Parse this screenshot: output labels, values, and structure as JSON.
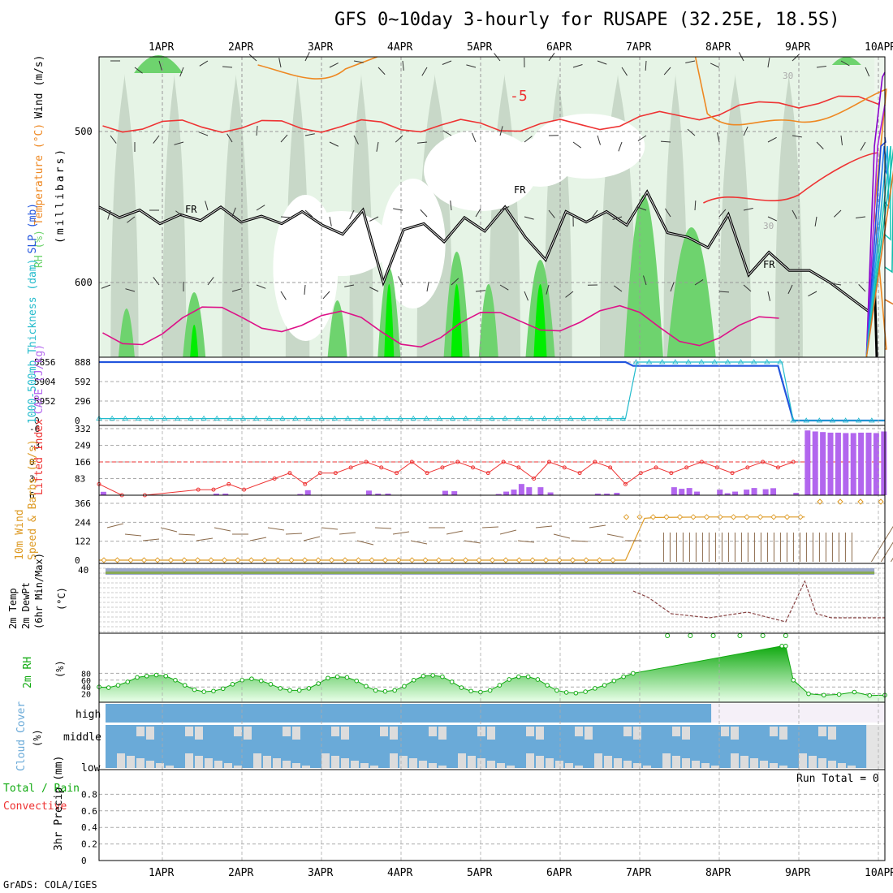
{
  "title": "GFS 0~10day 3-hourly for RUSAPE (32.25E, 18.5S)",
  "credit": "GrADS: COLA/IGES",
  "dates": [
    "1APR",
    "2APR",
    "3APR",
    "4APR",
    "5APR",
    "6APR",
    "7APR",
    "8APR",
    "9APR",
    "10APR"
  ],
  "colors": {
    "rh_light": "#e6f4e6",
    "rh_mid": "#c8d8c8",
    "rh_green": "#6ed36e",
    "rh_bright": "#00ee00",
    "temp_red": "#ee3333",
    "temp_orange": "#ee8822",
    "temp_magenta": "#dd1188",
    "slp": "#2255dd",
    "thk": "#22bbcc",
    "cape": "#b266ee",
    "li": "#ee3333",
    "wind_speed": "#dd9922",
    "barb": "#8b6a4a",
    "rh2m": "#11aa11",
    "cloud": "#6aaad8",
    "cloud_gap": "#dcdcdc"
  },
  "chart_data": [
    {
      "panel": "upper-air",
      "type": "heatmap",
      "ylabel_parts": [
        "RH (%)",
        "Temperature (°C)",
        "Wind (m/s)"
      ],
      "ylabel2": "(millibars)",
      "y_ticks": [
        "500",
        "600"
      ],
      "contour_labels": [
        "-5",
        "FR",
        "FR",
        "FR",
        "30",
        "30"
      ],
      "freezing_level_mb": [
        550,
        557,
        552,
        561,
        555,
        559,
        550,
        560,
        556,
        561,
        553,
        562,
        568,
        552,
        600,
        565,
        561,
        573,
        557,
        566,
        550,
        570,
        585,
        553,
        560,
        553,
        562,
        540,
        567,
        570,
        577,
        555,
        595,
        580,
        592,
        592,
        600,
        610,
        620
      ]
    },
    {
      "panel": "slp-thickness",
      "type": "line",
      "ylabel_parts": [
        "1000-500mb Thickness (dam)",
        "SLP (mb)"
      ],
      "left_ticks": [
        "5856",
        "5904",
        "5952",
        "0"
      ],
      "right_ticks": [
        "888",
        "592",
        "296",
        "0"
      ],
      "series": [
        {
          "name": "SLP",
          "x": [
            0,
            6.9,
            7,
            8.9,
            9.1,
            10.3
          ],
          "values": [
            888,
            888,
            830,
            830,
            0,
            0
          ]
        },
        {
          "name": "Thickness",
          "x": [
            0,
            6.9,
            7.05,
            8.95,
            9.1,
            10.3
          ],
          "values": [
            30,
            30,
            888,
            888,
            0,
            0
          ]
        }
      ]
    },
    {
      "panel": "cape-li",
      "type": "bar",
      "ylabel_parts": [
        "Lifted Index",
        "CAPE (J/kg)"
      ],
      "left_ticks": [
        "-6",
        "-3",
        "0",
        "3",
        "6"
      ],
      "right_ticks": [
        "332",
        "249",
        "166",
        "83",
        ""
      ],
      "cape_x": [
        0.02,
        1.5,
        1.62,
        2.6,
        2.7,
        3.5,
        3.62,
        3.75,
        4.5,
        4.62,
        5.2,
        5.3,
        5.4,
        5.5,
        5.6,
        5.75,
        5.88,
        6.5,
        6.62,
        6.75,
        7.5,
        7.6,
        7.7,
        7.8,
        8.1,
        8.2,
        8.3,
        8.45,
        8.55,
        8.7,
        8.8,
        9.1,
        9.25,
        9.35,
        9.45,
        9.55,
        9.65,
        9.75,
        9.85,
        9.95,
        10.05,
        10.15,
        10.25
      ],
      "cape_values": [
        17,
        8,
        8,
        6,
        25,
        23,
        8,
        8,
        22,
        20,
        6,
        18,
        28,
        56,
        40,
        40,
        14,
        8,
        8,
        12,
        40,
        32,
        36,
        18,
        28,
        10,
        18,
        28,
        36,
        30,
        35,
        12,
        323,
        318,
        315,
        312,
        312,
        310,
        310,
        312,
        312,
        310,
        318
      ],
      "li_x": [
        0,
        0.3,
        0.6,
        1.3,
        1.5,
        1.7,
        1.9,
        2.3,
        2.5,
        2.7,
        2.9,
        3.1,
        3.3,
        3.5,
        3.7,
        3.9,
        4.1,
        4.3,
        4.5,
        4.7,
        4.9,
        5.1,
        5.3,
        5.5,
        5.7,
        5.9,
        6.1,
        6.3,
        6.5,
        6.7,
        6.9,
        7.1,
        7.3,
        7.5,
        7.7,
        7.9,
        8.1,
        8.3,
        8.5,
        8.7,
        8.9,
        9.1
      ],
      "li_values": [
        4,
        6,
        6,
        5,
        5,
        4,
        5,
        3,
        2,
        4,
        2,
        2,
        1,
        0,
        1,
        2,
        0,
        2,
        1,
        0,
        1,
        2,
        0,
        1,
        3,
        0,
        1,
        2,
        0,
        1,
        4,
        2,
        1,
        2,
        1,
        0,
        1,
        2,
        1,
        0,
        1,
        0
      ]
    },
    {
      "panel": "wind10m",
      "type": "line",
      "ylabel_parts": [
        "10m Wind",
        "Speed & Barbs (m/s)"
      ],
      "right_ticks": [
        "366",
        "244",
        "122",
        "0"
      ],
      "series": [
        {
          "name": "Speed",
          "x": [
            0,
            6.9,
            7.15,
            7.3,
            8,
            8.9,
            9.25
          ],
          "values": [
            0,
            0,
            270,
            275,
            278,
            278,
            278
          ]
        }
      ]
    },
    {
      "panel": "temp2m",
      "type": "line",
      "ylabel_parts": [
        "2m Temp",
        "2m DewPt",
        "(6hr Min/Max)"
      ],
      "y_unit": "(°C)",
      "y_ticks": [
        "40"
      ],
      "series": [
        {
          "name": "Dew Point",
          "x": [
            7,
            7.2,
            7.5,
            8,
            8.5,
            9,
            9.25,
            9.4,
            9.6,
            10.3
          ],
          "values": [
            22,
            30,
            50,
            55,
            48,
            60,
            10,
            50,
            55,
            55
          ]
        }
      ]
    },
    {
      "panel": "rh2m",
      "type": "area",
      "ylabel_parts": [
        "2m RH"
      ],
      "y_unit": "(%)",
      "y_ticks": [
        "80",
        "60",
        "40",
        "20"
      ],
      "series": [
        {
          "name": "2m RH",
          "x": [
            0,
            0.125,
            0.25,
            0.375,
            0.5,
            0.625,
            0.75,
            0.875,
            1,
            1.125,
            1.25,
            1.375,
            1.5,
            1.625,
            1.75,
            1.875,
            2,
            2.125,
            2.25,
            2.375,
            2.5,
            2.625,
            2.75,
            2.875,
            3,
            3.125,
            3.25,
            3.375,
            3.5,
            3.625,
            3.75,
            3.875,
            4,
            4.125,
            4.25,
            4.375,
            4.5,
            4.625,
            4.75,
            4.875,
            5,
            5.125,
            5.25,
            5.375,
            5.5,
            5.625,
            5.75,
            5.875,
            6,
            6.125,
            6.25,
            6.375,
            6.5,
            6.625,
            6.75,
            6.875,
            7,
            8.95,
            9,
            9.1,
            9.3,
            9.5,
            9.7,
            9.9,
            10.1,
            10.3
          ],
          "values": [
            40,
            38,
            45,
            55,
            68,
            72,
            75,
            72,
            60,
            45,
            32,
            26,
            28,
            35,
            48,
            60,
            64,
            58,
            48,
            36,
            30,
            30,
            36,
            50,
            66,
            70,
            68,
            58,
            42,
            30,
            27,
            30,
            42,
            60,
            72,
            74,
            70,
            55,
            38,
            28,
            25,
            30,
            45,
            62,
            70,
            70,
            62,
            45,
            30,
            24,
            22,
            26,
            36,
            45,
            58,
            70,
            80,
            160,
            160,
            60,
            20,
            16,
            18,
            25,
            15,
            16
          ]
        }
      ]
    },
    {
      "panel": "cloud",
      "type": "bar",
      "ylabel_parts": [
        "Cloud Cover",
        "(%)"
      ],
      "row_labels": [
        "high",
        "middle",
        "low"
      ],
      "clear_from_x": 6.9
    },
    {
      "panel": "precip",
      "type": "bar",
      "ylabel_parts": [
        "Total / Rain",
        "Convective",
        "3hr Precip (mm)"
      ],
      "y_ticks": [
        "0.8",
        "0.6",
        "0.4",
        "0.2",
        "0"
      ],
      "ylim": [
        0,
        1
      ],
      "run_total": "Run Total = 0",
      "values": []
    }
  ]
}
